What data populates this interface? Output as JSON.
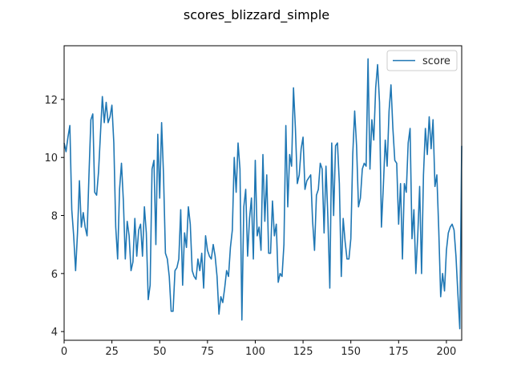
{
  "chart_data": {
    "type": "line",
    "title": "scores_blizzard_simple",
    "xlabel": "",
    "ylabel": "",
    "xlim": [
      0,
      208
    ],
    "ylim": [
      3.7,
      13.85
    ],
    "xticks": [
      0,
      25,
      50,
      75,
      100,
      125,
      150,
      175,
      200
    ],
    "yticks": [
      4,
      6,
      8,
      10,
      12
    ],
    "grid": false,
    "legend": {
      "placement": "top-right",
      "entries": [
        "score"
      ]
    },
    "series": [
      {
        "name": "score",
        "color": "#1f77b4",
        "y": [
          10.5,
          10.2,
          10.7,
          11.1,
          8.2,
          7.3,
          6.1,
          7.4,
          9.2,
          7.6,
          8.1,
          7.6,
          7.3,
          9.4,
          11.3,
          11.5,
          8.8,
          8.7,
          9.5,
          10.8,
          12.1,
          11.2,
          11.9,
          11.2,
          11.4,
          11.8,
          10.5,
          7.6,
          6.5,
          8.9,
          9.8,
          8.5,
          6.5,
          7.8,
          7.3,
          6.1,
          6.4,
          7.9,
          6.6,
          7.5,
          7.7,
          6.6,
          8.3,
          7.4,
          5.1,
          5.6,
          9.6,
          9.9,
          7.0,
          10.8,
          8.6,
          11.2,
          9.4,
          6.7,
          6.5,
          5.9,
          4.7,
          4.7,
          6.1,
          6.2,
          6.5,
          8.2,
          5.6,
          7.4,
          6.9,
          8.3,
          7.7,
          6.1,
          5.9,
          5.8,
          6.5,
          6.1,
          6.7,
          5.5,
          7.3,
          6.8,
          6.6,
          6.5,
          7.0,
          6.6,
          5.9,
          4.6,
          5.2,
          5.0,
          5.5,
          6.1,
          5.9,
          6.9,
          7.5,
          10.0,
          8.8,
          10.5,
          9.6,
          4.4,
          8.3,
          8.9,
          6.6,
          7.9,
          8.6,
          6.5,
          9.9,
          7.3,
          7.6,
          6.8,
          10.1,
          7.8,
          9.4,
          6.7,
          6.7,
          8.5,
          7.3,
          7.7,
          5.7,
          6.0,
          5.9,
          7.0,
          11.1,
          8.3,
          10.1,
          9.7,
          12.4,
          11.0,
          9.1,
          9.4,
          10.3,
          10.7,
          8.9,
          9.2,
          9.3,
          9.4,
          7.8,
          6.8,
          8.7,
          8.9,
          9.8,
          9.6,
          7.4,
          9.7,
          7.9,
          5.5,
          10.5,
          8.0,
          10.4,
          10.5,
          9.1,
          5.9,
          7.9,
          7.1,
          6.5,
          6.5,
          7.2,
          10.1,
          11.6,
          10.4,
          8.3,
          8.6,
          9.6,
          9.8,
          9.7,
          13.4,
          9.6,
          11.3,
          10.6,
          12.4,
          13.2,
          11.9,
          7.6,
          9.0,
          10.6,
          9.7,
          11.6,
          12.5,
          11.0,
          9.9,
          9.8,
          7.7,
          9.1,
          6.5,
          9.1,
          8.8,
          10.5,
          11.0,
          7.2,
          8.2,
          6.0,
          7.3,
          9.0,
          6.0,
          9.4,
          11.0,
          10.1,
          11.4,
          10.3,
          11.3,
          9.0,
          9.4,
          7.5,
          5.2,
          6.0,
          5.4,
          6.8,
          7.4,
          7.6,
          7.7,
          7.5,
          6.6,
          5.3,
          4.1,
          10.4
        ]
      }
    ]
  }
}
